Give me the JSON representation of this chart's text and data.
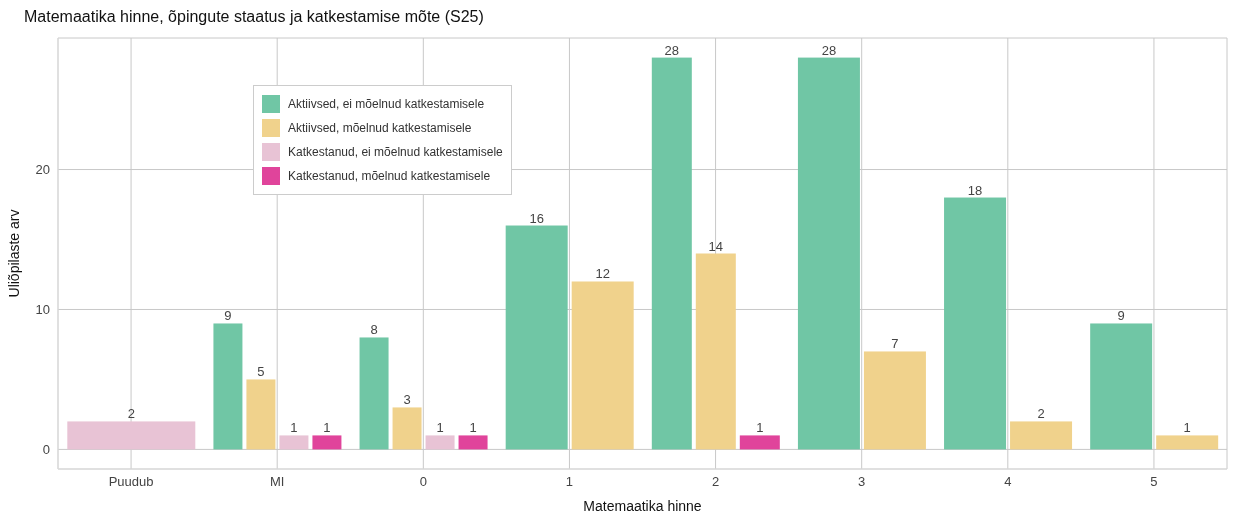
{
  "chart_data": {
    "type": "bar",
    "title": "Matemaatika hinne, õpingute staatus ja katkestamise mõte (S25)",
    "xlabel": "Matemaatika hinne",
    "ylabel": "Üliõpilaste arv",
    "categories": [
      "Puudub",
      "MI",
      "0",
      "1",
      "2",
      "3",
      "4",
      "5"
    ],
    "series": [
      {
        "name": "Aktiivsed, ei mõelnud katkestamisele",
        "color": "#70c6a5",
        "values": [
          null,
          9,
          8,
          16,
          28,
          28,
          18,
          9
        ]
      },
      {
        "name": "Aktiivsed, mõelnud katkestamisele",
        "color": "#f0d28c",
        "values": [
          null,
          5,
          3,
          12,
          14,
          7,
          2,
          1
        ]
      },
      {
        "name": "Katkestanud, ei mõelnud katkestamisele",
        "color": "#e8c3d5",
        "values": [
          2,
          1,
          1,
          null,
          null,
          null,
          null,
          null
        ]
      },
      {
        "name": "Katkestanud, mõelnud katkestamisele",
        "color": "#e0449b",
        "values": [
          null,
          1,
          1,
          null,
          1,
          null,
          null,
          null
        ]
      }
    ],
    "ylim": [
      -1.4,
      29.4
    ],
    "yticks": [
      0,
      10,
      20
    ],
    "grid": true,
    "legend": "top left",
    "data_labels": true
  }
}
